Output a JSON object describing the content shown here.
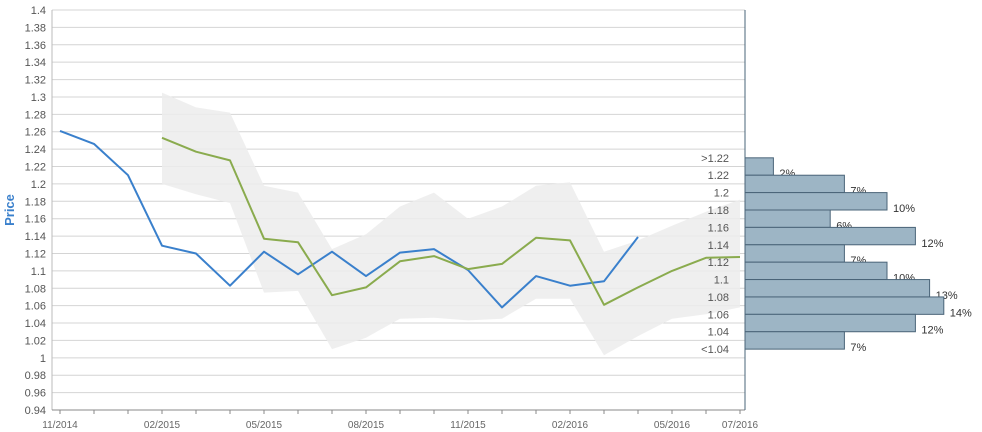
{
  "chart_data": {
    "type": "line",
    "ylabel": "Price",
    "ylim": [
      0.94,
      1.4
    ],
    "y_ticks": [
      "1.4",
      "1.38",
      "1.36",
      "1.34",
      "1.32",
      "1.3",
      "1.28",
      "1.26",
      "1.24",
      "1.22",
      "1.2",
      "1.18",
      "1.16",
      "1.14",
      "1.12",
      "1.1",
      "1.08",
      "1.06",
      "1.04",
      "1.02",
      "1",
      "0.98",
      "0.96",
      "0.94"
    ],
    "x_ticks": [
      "11/2014",
      "02/2015",
      "05/2015",
      "08/2015",
      "11/2015",
      "02/2016",
      "05/2016",
      "07/2016"
    ],
    "grid": true,
    "colors": {
      "actual": "#3a80cc",
      "forecast": "#8aab4e",
      "band": "#ececec",
      "bars": "#9db5c5",
      "bar_border": "#4a6478",
      "axis_title": "#3a80cc"
    },
    "series": [
      {
        "x": [
          "2014-11",
          "2014-12",
          "2015-01",
          "2015-02",
          "2015-03",
          "2015-04",
          "2015-05",
          "2015-06",
          "2015-07",
          "2015-08",
          "2015-09",
          "2015-10",
          "2015-11",
          "2015-12",
          "2016-01",
          "2016-02",
          "2016-03",
          "2016-04"
        ],
        "values": [
          1.261,
          1.246,
          1.21,
          1.129,
          1.12,
          1.083,
          1.122,
          1.096,
          1.122,
          1.094,
          1.121,
          1.125,
          1.101,
          1.058,
          1.094,
          1.083,
          1.088,
          1.139
        ]
      },
      {
        "x": [
          "2015-02",
          "2015-03",
          "2015-04",
          "2015-05",
          "2015-06",
          "2015-07",
          "2015-08",
          "2015-09",
          "2015-10",
          "2015-11",
          "2015-12",
          "2016-01",
          "2016-02",
          "2016-03",
          "2016-04",
          "2016-05",
          "2016-06",
          "2016-07"
        ],
        "values": [
          1.253,
          1.237,
          1.227,
          1.137,
          1.133,
          1.072,
          1.081,
          1.111,
          1.117,
          1.102,
          1.108,
          1.138,
          1.135,
          1.061,
          1.081,
          1.1,
          1.115,
          1.116
        ]
      }
    ],
    "band": {
      "x": [
        "2015-02",
        "2015-03",
        "2015-04",
        "2015-05",
        "2015-06",
        "2015-07",
        "2015-08",
        "2015-09",
        "2015-10",
        "2015-11",
        "2015-12",
        "2016-01",
        "2016-02",
        "2016-03",
        "2016-04",
        "2016-05",
        "2016-06",
        "2016-07"
      ],
      "upper": [
        1.305,
        1.288,
        1.282,
        1.198,
        1.19,
        1.125,
        1.142,
        1.174,
        1.19,
        1.16,
        1.174,
        1.198,
        1.202,
        1.122,
        1.135,
        1.152,
        1.168,
        1.182
      ],
      "lower": [
        1.2,
        1.188,
        1.178,
        1.075,
        1.077,
        1.01,
        1.023,
        1.045,
        1.046,
        1.043,
        1.045,
        1.068,
        1.068,
        1.003,
        1.025,
        1.045,
        1.05,
        1.058
      ]
    },
    "histogram": {
      "bins": [
        ">1.22",
        "1.22",
        "1.2",
        "1.18",
        "1.16",
        "1.14",
        "1.12",
        "1.1",
        "1.08",
        "1.06",
        "1.04",
        "<1.04"
      ],
      "percent_labels": [
        "2%",
        "7%",
        "10%",
        "6%",
        "12%",
        "7%",
        "10%",
        "13%",
        "14%",
        "12%",
        "7%"
      ],
      "values": [
        2,
        7,
        10,
        6,
        12,
        7,
        10,
        13,
        14,
        12,
        7
      ]
    }
  }
}
